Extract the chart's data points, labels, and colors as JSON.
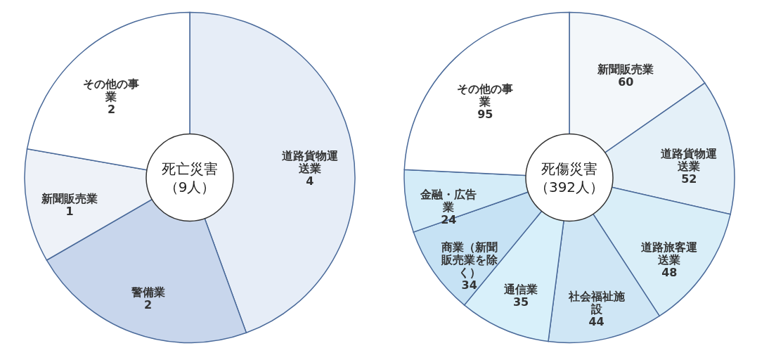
{
  "chart_data": [
    {
      "type": "donut",
      "title": "死亡災害",
      "subtitle": "（9人）",
      "categories": [
        "道路貨物運送業",
        "警備業",
        "新聞販売業",
        "その他の事業"
      ],
      "values": [
        4,
        2,
        1,
        2
      ],
      "colors": [
        "#e6edf7",
        "#c8d6ec",
        "#eef2f8",
        "#ffffff"
      ],
      "data_labels": true,
      "legend": false
    },
    {
      "type": "donut",
      "title": "死傷災害",
      "subtitle": "（392人）",
      "categories": [
        "新聞販売業",
        "道路貨物運送業",
        "道路旅客運送業",
        "社会福祉施設",
        "通信業",
        "商業（新聞販売業を除く）",
        "金融・広告業",
        "その他の事業"
      ],
      "values": [
        60,
        52,
        48,
        44,
        35,
        34,
        24,
        95
      ],
      "colors": [
        "#f3f7fa",
        "#e4f0f8",
        "#d9eef8",
        "#cfe6f5",
        "#d8f0fa",
        "#c6e2f4",
        "#d4ecf8",
        "#ffffff"
      ],
      "data_labels": true,
      "legend": false
    }
  ]
}
